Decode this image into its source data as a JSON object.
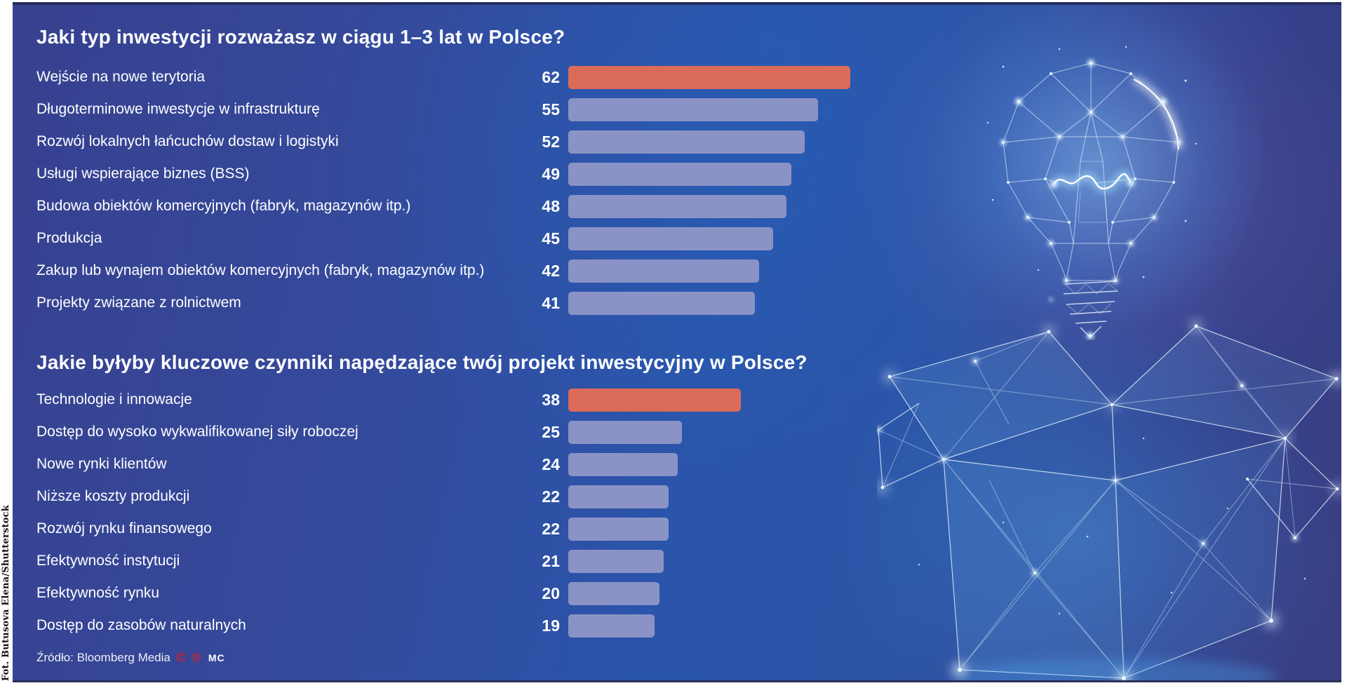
{
  "credit": "Fot. Butusova Elena/Shutterstock",
  "source": {
    "label": "Źródło: Bloomberg Media",
    "copyright_icon": "©",
    "phonogram_icon": "℗",
    "brand": "MC"
  },
  "colors": {
    "bar_default": "#8b93c6",
    "bar_highlight": "#db6b59",
    "source_icon_red": "#d2232a",
    "panel_top_line": "#242e5c",
    "background_dark": "#36418f",
    "background_bright": "#2a55ab",
    "text": "#ffffff"
  },
  "chart_data": [
    {
      "type": "bar",
      "title": "Jaki typ inwestycji rozważasz w ciągu 1–3 lat w Polsce?",
      "categories": [
        "Wejście na nowe terytoria",
        "Długoterminowe inwestycje w infrastrukturę",
        "Rozwój lokalnych łańcuchów dostaw i logistyki",
        "Usługi wspierające biznes (BSS)",
        "Budowa obiektów komercyjnych (fabryk, magazynów itp.)",
        "Produkcja",
        "Zakup lub wynajem obiektów komercyjnych (fabryk, magazynów itp.)",
        "Projekty związane z rolnictwem"
      ],
      "values": [
        62,
        55,
        52,
        49,
        48,
        45,
        42,
        41
      ],
      "highlight_index": 0,
      "xlim": [
        0,
        62
      ],
      "value_labels_shown": true,
      "orientation": "horizontal",
      "grid": false,
      "legend": false
    },
    {
      "type": "bar",
      "title": "Jakie byłyby kluczowe czynniki napędzające twój projekt inwestycyjny w Polsce?",
      "categories": [
        "Technologie i innowacje",
        "Dostęp do wysoko wykwalifikowanej siły roboczej",
        "Nowe rynki klientów",
        "Niższe koszty produkcji",
        "Rozwój rynku finansowego",
        "Efektywność instytucji",
        "Efektywność rynku",
        "Dostęp do zasobów naturalnych"
      ],
      "values": [
        38,
        25,
        24,
        22,
        22,
        21,
        20,
        19
      ],
      "highlight_index": 0,
      "xlim": [
        0,
        62
      ],
      "value_labels_shown": true,
      "orientation": "horizontal",
      "grid": false,
      "legend": false
    }
  ]
}
